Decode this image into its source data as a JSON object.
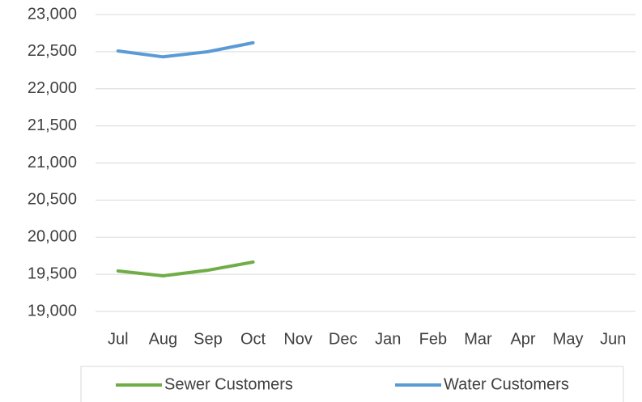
{
  "chart_data": {
    "type": "line",
    "categories": [
      "Jul",
      "Aug",
      "Sep",
      "Oct",
      "Nov",
      "Dec",
      "Jan",
      "Feb",
      "Mar",
      "Apr",
      "May",
      "Jun"
    ],
    "series": [
      {
        "name": "Sewer Customers",
        "color": "#70ad47",
        "values": [
          19545,
          19480,
          19555,
          19665,
          null,
          null,
          null,
          null,
          null,
          null,
          null,
          null
        ]
      },
      {
        "name": "Water Customers",
        "color": "#5b9bd5",
        "values": [
          22510,
          22430,
          22500,
          22620,
          null,
          null,
          null,
          null,
          null,
          null,
          null,
          null
        ]
      }
    ],
    "ylim": [
      19000,
      23000
    ],
    "yticks": [
      {
        "value": 19000,
        "label": "19,000"
      },
      {
        "value": 19500,
        "label": "19,500"
      },
      {
        "value": 20000,
        "label": "20,000"
      },
      {
        "value": 20500,
        "label": "20,500"
      },
      {
        "value": 21000,
        "label": "21,000"
      },
      {
        "value": 21500,
        "label": "21,500"
      },
      {
        "value": 22000,
        "label": "22,000"
      },
      {
        "value": 22500,
        "label": "22,500"
      },
      {
        "value": 23000,
        "label": "23,000"
      }
    ],
    "grid": true,
    "legend": "bottom"
  }
}
